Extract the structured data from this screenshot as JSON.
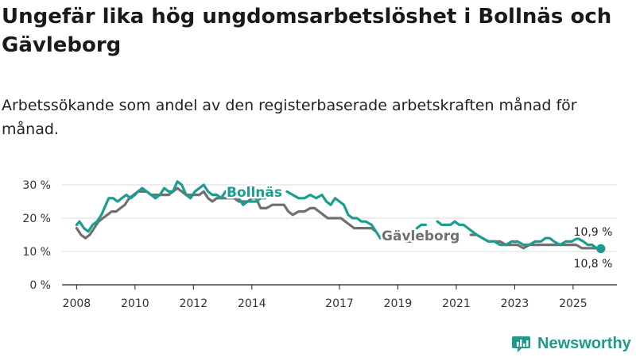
{
  "title": "Ungefär lika hög ungdomsarbetslöshet i Bollnäs och Gävleborg",
  "subtitle": "Arbetssökande som andel av den registerbaserade arbetskraften månad för månad.",
  "brand": "Newsworthy",
  "colors": {
    "bollnas": "#1a9e8f",
    "gavleborg": "#707070",
    "grid": "#d9d9d9",
    "axis": "#222222"
  },
  "chart_data": {
    "type": "line",
    "title": "Ungefär lika hög ungdomsarbetslöshet i Bollnäs och Gävleborg",
    "xlabel": "",
    "ylabel": "",
    "ylim": [
      0,
      30
    ],
    "xlim": [
      2007.5,
      2026.5
    ],
    "y_ticks": [
      0,
      10,
      20,
      30
    ],
    "y_tick_labels": [
      "0 %",
      "10 %",
      "20 %",
      "30 %"
    ],
    "x_ticks": [
      2008,
      2010,
      2012,
      2014,
      2017,
      2019,
      2021,
      2023,
      2025
    ],
    "x_tick_labels": [
      "2008",
      "2010",
      "2012",
      "2014",
      "2017",
      "2019",
      "2021",
      "2023",
      "2025"
    ],
    "series": [
      {
        "name": "Bollnäs",
        "label": "Bollnäs",
        "end_label": "10,9 %",
        "segments": [
          [
            [
              2008.0,
              18
            ],
            [
              2008.1,
              19
            ],
            [
              2008.25,
              17
            ],
            [
              2008.4,
              16
            ],
            [
              2008.55,
              18
            ],
            [
              2008.7,
              19
            ],
            [
              2008.85,
              21
            ],
            [
              2009.0,
              24
            ],
            [
              2009.1,
              26
            ],
            [
              2009.25,
              26
            ],
            [
              2009.4,
              25
            ],
            [
              2009.55,
              26
            ],
            [
              2009.7,
              27
            ],
            [
              2009.85,
              26
            ],
            [
              2010.0,
              27
            ],
            [
              2010.1,
              28
            ],
            [
              2010.25,
              29
            ],
            [
              2010.4,
              28
            ],
            [
              2010.55,
              27
            ],
            [
              2010.7,
              26
            ],
            [
              2010.85,
              27
            ],
            [
              2011.0,
              29
            ],
            [
              2011.15,
              28
            ],
            [
              2011.3,
              28
            ],
            [
              2011.45,
              31
            ],
            [
              2011.6,
              30
            ],
            [
              2011.75,
              27
            ],
            [
              2011.9,
              26
            ],
            [
              2012.05,
              28
            ],
            [
              2012.2,
              29
            ],
            [
              2012.35,
              30
            ],
            [
              2012.5,
              28
            ],
            [
              2012.65,
              27
            ],
            [
              2012.8,
              27
            ],
            [
              2012.95,
              26
            ],
            [
              2013.1,
              28
            ],
            [
              2013.2,
              27
            ]
          ],
          [
            [
              2013.55,
              26
            ],
            [
              2013.7,
              24
            ],
            [
              2013.85,
              25
            ],
            [
              2014.0,
              25
            ],
            [
              2014.15,
              25
            ],
            [
              2014.3,
              26
            ],
            [
              2014.45,
              26
            ]
          ],
          [
            [
              2015.2,
              28
            ],
            [
              2015.4,
              27
            ],
            [
              2015.6,
              26
            ],
            [
              2015.8,
              26
            ],
            [
              2016.0,
              27
            ],
            [
              2016.2,
              26
            ],
            [
              2016.4,
              27
            ],
            [
              2016.55,
              25
            ],
            [
              2016.7,
              24
            ],
            [
              2016.85,
              26
            ],
            [
              2017.0,
              25
            ],
            [
              2017.15,
              24
            ],
            [
              2017.3,
              21
            ],
            [
              2017.45,
              20
            ],
            [
              2017.6,
              20
            ],
            [
              2017.75,
              19
            ],
            [
              2017.9,
              19
            ],
            [
              2018.1,
              18
            ],
            [
              2018.25,
              16
            ],
            [
              2018.4,
              14
            ]
          ],
          [
            [
              2019.65,
              17
            ],
            [
              2019.8,
              18
            ],
            [
              2019.95,
              18
            ]
          ],
          [
            [
              2020.35,
              19
            ],
            [
              2020.5,
              18
            ],
            [
              2020.65,
              18
            ],
            [
              2020.8,
              18
            ],
            [
              2020.95,
              19
            ],
            [
              2021.1,
              18
            ],
            [
              2021.25,
              18
            ],
            [
              2021.4,
              17
            ],
            [
              2021.55,
              16
            ],
            [
              2021.7,
              15
            ],
            [
              2021.9,
              14
            ],
            [
              2022.1,
              13
            ],
            [
              2022.3,
              13
            ],
            [
              2022.5,
              12
            ],
            [
              2022.7,
              12
            ],
            [
              2022.9,
              13
            ],
            [
              2023.1,
              13
            ],
            [
              2023.3,
              12
            ],
            [
              2023.5,
              12
            ],
            [
              2023.7,
              13
            ],
            [
              2023.9,
              13
            ],
            [
              2024.05,
              14
            ],
            [
              2024.2,
              14
            ],
            [
              2024.35,
              13
            ],
            [
              2024.55,
              12
            ],
            [
              2024.75,
              13
            ],
            [
              2024.95,
              13
            ],
            [
              2025.15,
              14
            ],
            [
              2025.35,
              13
            ],
            [
              2025.5,
              12
            ],
            [
              2025.65,
              12
            ],
            [
              2025.8,
              11
            ],
            [
              2025.95,
              10.9
            ]
          ]
        ]
      },
      {
        "name": "Gävleborg",
        "label": "Gävleborg",
        "end_label": "10,8 %",
        "segments": [
          [
            [
              2008.0,
              17
            ],
            [
              2008.15,
              15
            ],
            [
              2008.3,
              14
            ],
            [
              2008.45,
              15
            ],
            [
              2008.6,
              17
            ],
            [
              2008.75,
              19
            ],
            [
              2008.9,
              20
            ],
            [
              2009.05,
              21
            ],
            [
              2009.2,
              22
            ],
            [
              2009.35,
              22
            ],
            [
              2009.5,
              23
            ],
            [
              2009.65,
              24
            ],
            [
              2009.8,
              26
            ],
            [
              2009.95,
              27
            ],
            [
              2010.1,
              28
            ],
            [
              2010.25,
              28
            ],
            [
              2010.4,
              28
            ],
            [
              2010.55,
              27
            ],
            [
              2010.7,
              27
            ],
            [
              2010.85,
              27
            ],
            [
              2011.0,
              27
            ],
            [
              2011.15,
              27
            ],
            [
              2011.3,
              28
            ],
            [
              2011.45,
              29
            ],
            [
              2011.6,
              28
            ],
            [
              2011.75,
              27
            ],
            [
              2011.9,
              27
            ],
            [
              2012.05,
              27
            ],
            [
              2012.2,
              27
            ],
            [
              2012.35,
              28
            ],
            [
              2012.5,
              26
            ],
            [
              2012.65,
              25
            ],
            [
              2012.8,
              26
            ],
            [
              2012.95,
              26
            ],
            [
              2013.1,
              26
            ],
            [
              2013.25,
              26
            ],
            [
              2013.4,
              26
            ],
            [
              2013.55,
              25
            ],
            [
              2013.7,
              25
            ],
            [
              2013.85,
              25
            ],
            [
              2014.0,
              26
            ],
            [
              2014.15,
              26
            ],
            [
              2014.3,
              23
            ],
            [
              2014.5,
              23
            ],
            [
              2014.7,
              24
            ],
            [
              2014.9,
              24
            ],
            [
              2015.1,
              24
            ],
            [
              2015.25,
              22
            ],
            [
              2015.4,
              21
            ],
            [
              2015.6,
              22
            ],
            [
              2015.8,
              22
            ],
            [
              2016.0,
              23
            ],
            [
              2016.15,
              23
            ],
            [
              2016.3,
              22
            ],
            [
              2016.45,
              21
            ],
            [
              2016.6,
              20
            ],
            [
              2016.75,
              20
            ],
            [
              2016.9,
              20
            ],
            [
              2017.05,
              20
            ],
            [
              2017.2,
              19
            ],
            [
              2017.35,
              18
            ],
            [
              2017.5,
              17
            ],
            [
              2017.7,
              17
            ],
            [
              2017.9,
              17
            ],
            [
              2018.1,
              17
            ],
            [
              2018.25,
              16
            ]
          ],
          [
            [
              2019.3,
              13
            ],
            [
              2019.45,
              13
            ]
          ],
          [
            [
              2021.5,
              15
            ],
            [
              2021.7,
              15
            ],
            [
              2021.9,
              14
            ],
            [
              2022.1,
              13
            ],
            [
              2022.3,
              13
            ],
            [
              2022.5,
              13
            ],
            [
              2022.7,
              12
            ],
            [
              2022.9,
              12
            ],
            [
              2023.1,
              12
            ],
            [
              2023.3,
              11
            ],
            [
              2023.5,
              12
            ],
            [
              2023.7,
              12
            ],
            [
              2023.9,
              12
            ],
            [
              2024.1,
              12
            ],
            [
              2024.3,
              12
            ],
            [
              2024.5,
              12
            ],
            [
              2024.7,
              12
            ],
            [
              2024.9,
              12
            ],
            [
              2025.1,
              12
            ],
            [
              2025.3,
              11
            ],
            [
              2025.5,
              11
            ],
            [
              2025.7,
              11
            ],
            [
              2025.95,
              10.8
            ]
          ]
        ]
      }
    ]
  }
}
